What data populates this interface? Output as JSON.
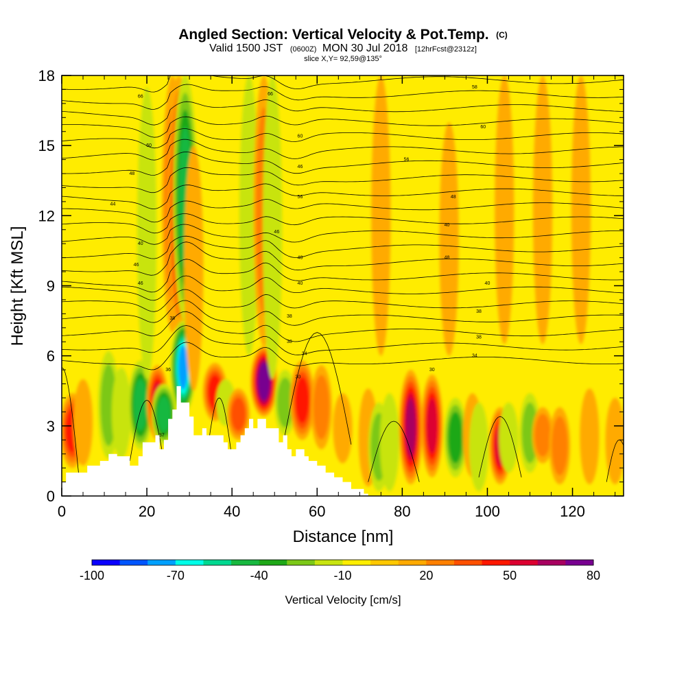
{
  "chart_data": {
    "type": "heatmap",
    "title": {
      "main": "Angled Section: Vertical Velocity & Pot.Temp.",
      "mark": "(C)"
    },
    "subtitle": {
      "valid": "Valid 1500 JST",
      "zulu": "(0600Z)",
      "date": "MON 30 Jul 2018",
      "fcst": "[12hrFcst@2312z]"
    },
    "slice_text": "slice X,Y= 92,59@135°",
    "xlabel": "Distance [nm]",
    "ylabel": "Height [Kft MSL]",
    "xlim": [
      0,
      132
    ],
    "ylim": [
      0,
      18
    ],
    "x_ticks": [
      0,
      20,
      40,
      60,
      80,
      100,
      120
    ],
    "x_tick_labels": [
      "0",
      "20",
      "40",
      "60",
      "80",
      "100",
      "120"
    ],
    "y_ticks": [
      0,
      3,
      6,
      9,
      12,
      15,
      18
    ],
    "y_tick_labels": [
      "0",
      "3",
      "6",
      "9",
      "12",
      "15",
      "18"
    ],
    "colorbar": {
      "title": "Vertical Velocity [cm/s]",
      "levels": [
        -100,
        -90,
        -80,
        -70,
        -60,
        -50,
        -40,
        -30,
        -20,
        -10,
        0,
        10,
        20,
        30,
        40,
        50,
        60,
        70,
        80
      ],
      "tick_values": [
        -100,
        -70,
        -40,
        -10,
        20,
        50,
        80
      ],
      "tick_labels": [
        "-100",
        "-70",
        "-40",
        "-10",
        "20",
        "50",
        "80"
      ],
      "colors": [
        "#0a00ff",
        "#0055ff",
        "#00a0ff",
        "#00ffe8",
        "#00d890",
        "#18b840",
        "#1ea818",
        "#7cc818",
        "#c8e410",
        "#ffee00",
        "#ffc800",
        "#ffaa00",
        "#ff8000",
        "#ff5000",
        "#ff1800",
        "#dc0030",
        "#a80060",
        "#780090"
      ]
    },
    "terrain": {
      "x": [
        0,
        1,
        1,
        6,
        6,
        9,
        9,
        11,
        11,
        13,
        13,
        16,
        16,
        18,
        18,
        19,
        19,
        22,
        22,
        23,
        23,
        24,
        24,
        25,
        25,
        26,
        26,
        27,
        27,
        28,
        28,
        30,
        30,
        31,
        31,
        33,
        33,
        34,
        34,
        38,
        38,
        39,
        39,
        41,
        41,
        42,
        42,
        43,
        43,
        44,
        44,
        45,
        45,
        46,
        46,
        48,
        48,
        51,
        51,
        52,
        52,
        53,
        53,
        54,
        54,
        55,
        55,
        57,
        57,
        58,
        58,
        60,
        60,
        62,
        62,
        64,
        64,
        66,
        66,
        68,
        68,
        71,
        71,
        72,
        72,
        132
      ],
      "y": [
        0.6,
        0.6,
        1.0,
        1.0,
        1.3,
        1.3,
        1.5,
        1.5,
        1.8,
        1.8,
        1.7,
        1.7,
        1.3,
        1.3,
        1.7,
        1.7,
        2.3,
        2.3,
        2.6,
        2.6,
        2.0,
        2.0,
        2.4,
        2.4,
        3.3,
        3.3,
        3.7,
        3.7,
        4.7,
        4.7,
        4.0,
        4.0,
        3.4,
        3.4,
        2.6,
        2.6,
        2.9,
        2.9,
        2.6,
        2.6,
        2.3,
        2.3,
        2.0,
        2.0,
        2.3,
        2.3,
        2.6,
        2.6,
        2.9,
        2.9,
        3.3,
        3.3,
        2.9,
        2.9,
        3.3,
        3.3,
        2.9,
        2.9,
        2.3,
        2.3,
        2.6,
        2.6,
        2.0,
        2.0,
        1.7,
        1.7,
        2.0,
        2.0,
        1.7,
        1.7,
        1.5,
        1.5,
        1.3,
        1.3,
        1.0,
        1.0,
        0.8,
        0.8,
        0.6,
        0.6,
        0.3,
        0.3,
        0.1,
        0.1,
        0.0
      ]
    },
    "vertical_velocity_features": [
      {
        "x": 2.5,
        "ylo": 1.2,
        "yhi": 4.4,
        "v": 45
      },
      {
        "x": 5,
        "ylo": 1.3,
        "yhi": 5.0,
        "v": 15
      },
      {
        "x": 11,
        "ylo": 1.6,
        "yhi": 6.2,
        "v": -25
      },
      {
        "x": 14,
        "ylo": 1.6,
        "yhi": 5.5,
        "v": -12
      },
      {
        "x": 18.5,
        "ylo": 2.0,
        "yhi": 5.8,
        "v": -40
      },
      {
        "x": 20,
        "ylo": 5,
        "yhi": 17.5,
        "v": -15
      },
      {
        "x": 22.5,
        "ylo": 2.4,
        "yhi": 5.6,
        "v": 55
      },
      {
        "x": 24,
        "ylo": 2.2,
        "yhi": 4.8,
        "v": -45
      },
      {
        "x": 26,
        "ylo": 7,
        "yhi": 18,
        "v": 22
      },
      {
        "x": 27.5,
        "ylo": 7,
        "yhi": 18,
        "v": 55
      },
      {
        "x": 28.5,
        "ylo": 3.5,
        "yhi": 7.5,
        "v": -70
      },
      {
        "x": 29,
        "ylo": 7.5,
        "yhi": 18,
        "v": -40
      },
      {
        "x": 31,
        "ylo": 4.5,
        "yhi": 15,
        "v": 12
      },
      {
        "x": 36,
        "ylo": 3.2,
        "yhi": 5.7,
        "v": 40
      },
      {
        "x": 38.5,
        "ylo": 3,
        "yhi": 5,
        "v": -12
      },
      {
        "x": 41.5,
        "ylo": 2.4,
        "yhi": 4.6,
        "v": 30
      },
      {
        "x": 44,
        "ylo": 6,
        "yhi": 18,
        "v": -14
      },
      {
        "x": 47.5,
        "ylo": 3.4,
        "yhi": 6.4,
        "v": 80
      },
      {
        "x": 47.5,
        "ylo": 6.4,
        "yhi": 18,
        "v": 22
      },
      {
        "x": 49.5,
        "ylo": 5,
        "yhi": 18,
        "v": -18
      },
      {
        "x": 52.5,
        "ylo": 2.6,
        "yhi": 5.4,
        "v": -20
      },
      {
        "x": 56.5,
        "ylo": 2.4,
        "yhi": 5.8,
        "v": 48
      },
      {
        "x": 61,
        "ylo": 2.0,
        "yhi": 5.6,
        "v": 22
      },
      {
        "x": 66,
        "ylo": 1.4,
        "yhi": 4.4,
        "v": 14
      },
      {
        "x": 72,
        "ylo": 0.4,
        "yhi": 4.6,
        "v": 12
      },
      {
        "x": 74.5,
        "ylo": 0.2,
        "yhi": 4.0,
        "v": -28
      },
      {
        "x": 77,
        "ylo": 0.2,
        "yhi": 4.4,
        "v": -12
      },
      {
        "x": 82,
        "ylo": 0.5,
        "yhi": 5.4,
        "v": 62
      },
      {
        "x": 87,
        "ylo": 0.8,
        "yhi": 5.2,
        "v": 55
      },
      {
        "x": 92.5,
        "ylo": 0.8,
        "yhi": 4.2,
        "v": -38
      },
      {
        "x": 96.5,
        "ylo": 0.8,
        "yhi": 4.4,
        "v": 18
      },
      {
        "x": 98,
        "ylo": 0.2,
        "yhi": 4.0,
        "v": -18
      },
      {
        "x": 103,
        "ylo": 0.5,
        "yhi": 3.8,
        "v": 55
      },
      {
        "x": 105,
        "ylo": 1.0,
        "yhi": 4.0,
        "v": -14
      },
      {
        "x": 110,
        "ylo": 1.0,
        "yhi": 4.4,
        "v": -22
      },
      {
        "x": 113,
        "ylo": 1.4,
        "yhi": 3.8,
        "v": 28
      },
      {
        "x": 117,
        "ylo": 0.5,
        "yhi": 3.8,
        "v": 22
      },
      {
        "x": 124,
        "ylo": 0.5,
        "yhi": 4.6,
        "v": 18
      },
      {
        "x": 130,
        "ylo": 0.5,
        "yhi": 4.2,
        "v": 14
      },
      {
        "x": 75,
        "ylo": 6,
        "yhi": 18,
        "v": 12
      },
      {
        "x": 91,
        "ylo": 6,
        "yhi": 16,
        "v": 10
      },
      {
        "x": 104,
        "ylo": 6.5,
        "yhi": 18,
        "v": 12
      },
      {
        "x": 113,
        "ylo": 6.5,
        "yhi": 18,
        "v": 12
      },
      {
        "x": 122,
        "ylo": 6.5,
        "yhi": 18,
        "v": 10
      }
    ],
    "isentrope_labels": [
      {
        "x": 18.5,
        "y": 17.1,
        "text": "66"
      },
      {
        "x": 49,
        "y": 17.2,
        "text": "66"
      },
      {
        "x": 97,
        "y": 17.5,
        "text": "58"
      },
      {
        "x": 20.5,
        "y": 15.0,
        "text": "60"
      },
      {
        "x": 56,
        "y": 15.4,
        "text": "60"
      },
      {
        "x": 99,
        "y": 15.8,
        "text": "60"
      },
      {
        "x": 81,
        "y": 14.4,
        "text": "56"
      },
      {
        "x": 56,
        "y": 14.1,
        "text": "46"
      },
      {
        "x": 16.5,
        "y": 13.8,
        "text": "48"
      },
      {
        "x": 56,
        "y": 12.8,
        "text": "56"
      },
      {
        "x": 92,
        "y": 12.8,
        "text": "48"
      },
      {
        "x": 12,
        "y": 12.5,
        "text": "44"
      },
      {
        "x": 50.5,
        "y": 11.3,
        "text": "46"
      },
      {
        "x": 90.5,
        "y": 11.6,
        "text": "40"
      },
      {
        "x": 18.5,
        "y": 10.8,
        "text": "40"
      },
      {
        "x": 56,
        "y": 10.2,
        "text": "48"
      },
      {
        "x": 90.5,
        "y": 10.2,
        "text": "48"
      },
      {
        "x": 17.5,
        "y": 9.9,
        "text": "46"
      },
      {
        "x": 18.5,
        "y": 9.1,
        "text": "46"
      },
      {
        "x": 56,
        "y": 9.1,
        "text": "40"
      },
      {
        "x": 100,
        "y": 9.1,
        "text": "40"
      },
      {
        "x": 26,
        "y": 7.6,
        "text": "38"
      },
      {
        "x": 53.5,
        "y": 7.7,
        "text": "38"
      },
      {
        "x": 98,
        "y": 7.9,
        "text": "38"
      },
      {
        "x": 53.5,
        "y": 6.6,
        "text": "38"
      },
      {
        "x": 98,
        "y": 6.8,
        "text": "38"
      },
      {
        "x": 57,
        "y": 6.1,
        "text": "34"
      },
      {
        "x": 97,
        "y": 6.0,
        "text": "34"
      },
      {
        "x": 25,
        "y": 5.4,
        "text": "36"
      },
      {
        "x": 55.5,
        "y": 5.1,
        "text": "30"
      },
      {
        "x": 87,
        "y": 5.4,
        "text": "30"
      },
      {
        "x": 23.5,
        "y": 2.6,
        "text": "37"
      }
    ]
  }
}
